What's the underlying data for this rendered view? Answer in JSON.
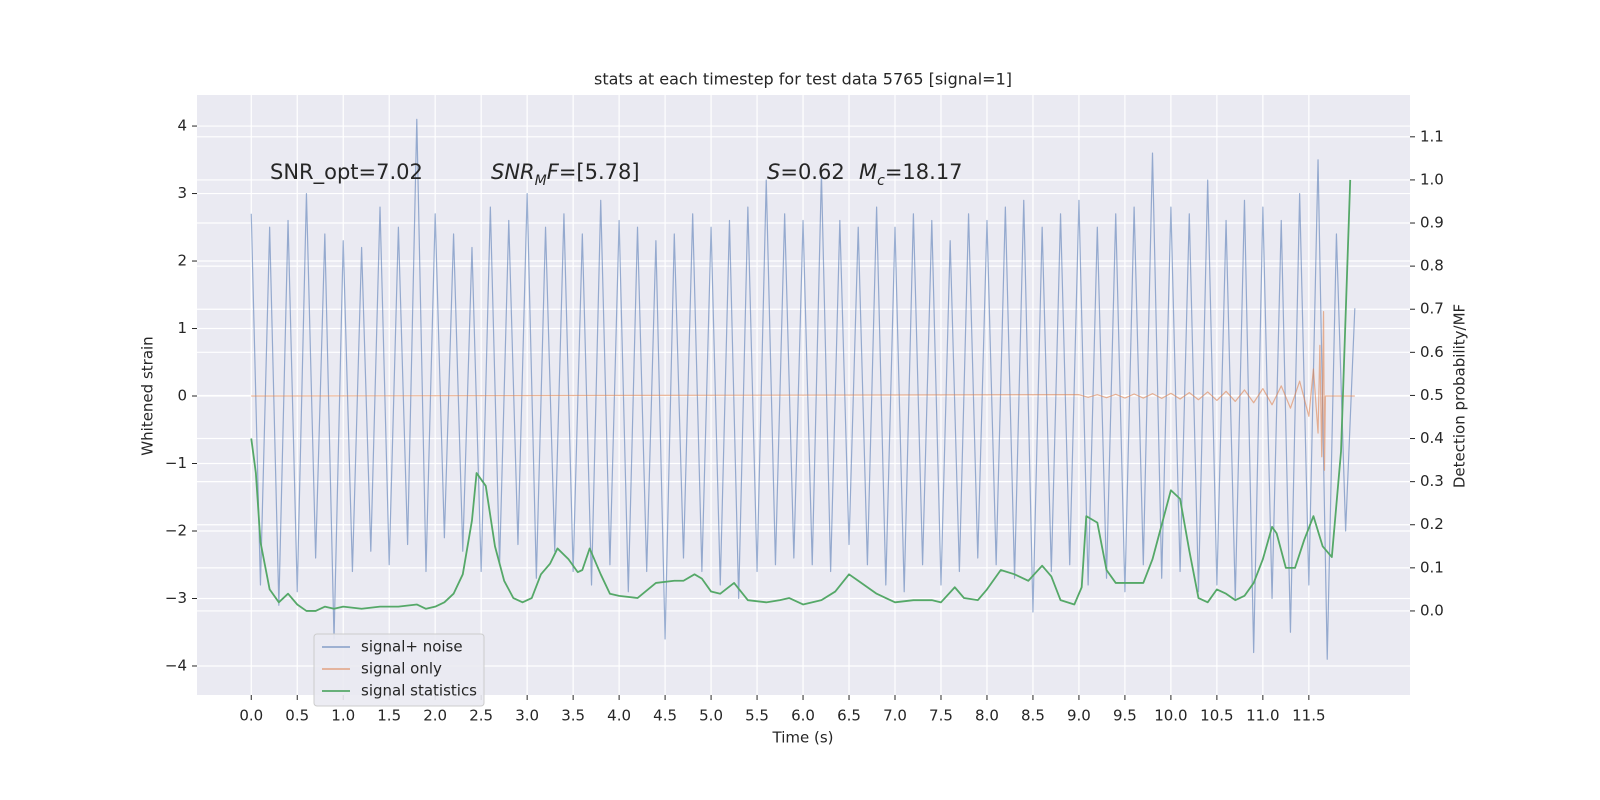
{
  "chart_data": {
    "type": "line",
    "title": "stats at each timestep for test data 5765 [signal=1]",
    "xlabel": "Time (s)",
    "ylabel": "Whitened strain",
    "y2label": "Detection probability/MF",
    "xlim": [
      -0.59,
      12.6
    ],
    "ylim": [
      -4.43,
      4.46
    ],
    "y2lim": [
      -0.195,
      1.197
    ],
    "xticks": [
      {
        "value": 0,
        "label": "0.0"
      },
      0.5,
      {
        "value": 1,
        "label": "1.0"
      },
      1.5,
      {
        "value": 2,
        "label": "2.0"
      },
      2.5,
      {
        "value": 3,
        "label": "3.0"
      },
      3.5,
      {
        "value": 4,
        "label": "4.0"
      },
      4.5,
      {
        "value": 5,
        "label": "5.0"
      },
      5.5,
      {
        "value": 6,
        "label": "6.0"
      },
      6.5,
      {
        "value": 7,
        "label": "7.0"
      },
      7.5,
      {
        "value": 8,
        "label": "8.0"
      },
      8.5,
      {
        "value": 9,
        "label": "9.0"
      },
      9.5,
      {
        "value": 10,
        "label": "10.0"
      },
      10.5,
      {
        "value": 11,
        "label": "11.0"
      },
      11.5
    ],
    "yticks": [
      {
        "value": -4,
        "label": "−4"
      },
      {
        "value": -3,
        "label": "−3"
      },
      {
        "value": -2,
        "label": "−2"
      },
      {
        "value": -1,
        "label": "−1"
      },
      0,
      1,
      2,
      3,
      4
    ],
    "y2ticks": [
      {
        "value": 0,
        "label": "0.0"
      },
      0.1,
      0.2,
      0.3,
      0.4,
      0.5,
      0.6,
      0.7,
      0.8,
      0.9,
      {
        "value": 1,
        "label": "1.0"
      },
      1.1
    ],
    "grid": true,
    "legend": "lower left",
    "annotations": [
      {
        "parts": [
          {
            "text": "SNR_opt=7.02"
          }
        ]
      },
      {
        "parts": [
          {
            "text": "SNR",
            "italic": true
          },
          {
            "text": "M",
            "italic": true,
            "sub": true
          },
          {
            "text": "F",
            "italic": true
          },
          {
            "text": "=[5.78]"
          }
        ]
      },
      {
        "parts": [
          {
            "text": "S",
            "italic": true
          },
          {
            "text": "=0.62"
          }
        ]
      },
      {
        "parts": [
          {
            "text": "M",
            "italic": true
          },
          {
            "text": "c",
            "italic": true,
            "sub": true
          },
          {
            "text": "=18.17"
          }
        ]
      }
    ],
    "series": [
      {
        "name": "signal+ noise",
        "color": "#4c72b0",
        "alpha": 0.55,
        "x": [
          0.0,
          0.1,
          0.2,
          0.3,
          0.4,
          0.5,
          0.6,
          0.7,
          0.8,
          0.9,
          1.0,
          1.1,
          1.2,
          1.3,
          1.4,
          1.5,
          1.6,
          1.7,
          1.8,
          1.9,
          2.0,
          2.1,
          2.2,
          2.3,
          2.4,
          2.5,
          2.6,
          2.7,
          2.8,
          2.9,
          3.0,
          3.1,
          3.2,
          3.3,
          3.4,
          3.5,
          3.6,
          3.7,
          3.8,
          3.9,
          4.0,
          4.1,
          4.2,
          4.3,
          4.4,
          4.5,
          4.6,
          4.7,
          4.8,
          4.9,
          5.0,
          5.1,
          5.2,
          5.3,
          5.4,
          5.5,
          5.6,
          5.7,
          5.8,
          5.9,
          6.0,
          6.1,
          6.2,
          6.3,
          6.4,
          6.5,
          6.6,
          6.7,
          6.8,
          6.9,
          7.0,
          7.1,
          7.2,
          7.3,
          7.4,
          7.5,
          7.6,
          7.7,
          7.8,
          7.9,
          8.0,
          8.1,
          8.2,
          8.3,
          8.4,
          8.5,
          8.6,
          8.7,
          8.8,
          8.9,
          9.0,
          9.1,
          9.2,
          9.3,
          9.4,
          9.5,
          9.6,
          9.7,
          9.8,
          9.9,
          10.0,
          10.1,
          10.2,
          10.3,
          10.4,
          10.5,
          10.6,
          10.7,
          10.8,
          10.9,
          11.0,
          11.1,
          11.2,
          11.3,
          11.4,
          11.5,
          11.6,
          11.7,
          11.8,
          11.9,
          12.0
        ],
        "values": [
          2.7,
          -2.8,
          2.5,
          -3.1,
          2.6,
          -2.9,
          3.0,
          -2.4,
          2.4,
          -3.6,
          2.3,
          -2.6,
          2.2,
          -2.3,
          2.8,
          -2.5,
          2.5,
          -2.2,
          4.1,
          -2.6,
          2.7,
          -2.1,
          2.4,
          -2.3,
          2.2,
          -2.6,
          2.8,
          -2.5,
          2.6,
          -2.2,
          3.0,
          -2.7,
          2.5,
          -2.3,
          2.7,
          -2.6,
          2.4,
          -2.8,
          2.9,
          -2.5,
          2.6,
          -2.9,
          2.5,
          -2.6,
          2.3,
          -3.6,
          2.4,
          -2.4,
          2.7,
          -2.6,
          2.5,
          -2.8,
          2.6,
          -3.0,
          2.8,
          -2.6,
          3.2,
          -2.5,
          2.7,
          -2.4,
          2.6,
          -2.5,
          3.3,
          -2.6,
          2.6,
          -2.2,
          2.5,
          -2.5,
          2.8,
          -2.8,
          2.5,
          -2.9,
          2.7,
          -2.5,
          2.6,
          -2.8,
          2.3,
          -2.6,
          2.7,
          -2.4,
          2.6,
          -2.5,
          2.8,
          -2.7,
          2.9,
          -3.2,
          2.5,
          -2.6,
          2.7,
          -2.5,
          2.9,
          -2.8,
          2.5,
          -2.7,
          2.7,
          -2.9,
          2.8,
          -2.5,
          3.6,
          -2.7,
          2.8,
          -2.6,
          2.7,
          -2.9,
          3.2,
          -2.8,
          2.6,
          -3.0,
          2.9,
          -3.8,
          2.8,
          -3.0,
          2.6,
          -3.5,
          3.0,
          -2.8,
          3.5,
          -3.9,
          2.4,
          -2.0,
          1.3
        ]
      },
      {
        "name": "signal only",
        "color": "#dd8452",
        "alpha": 0.6,
        "x": [
          0.0,
          9.0,
          9.1,
          9.2,
          9.3,
          9.4,
          9.5,
          9.6,
          9.7,
          9.8,
          9.9,
          10.0,
          10.1,
          10.2,
          10.3,
          10.4,
          10.5,
          10.6,
          10.7,
          10.8,
          10.9,
          11.0,
          11.1,
          11.2,
          11.3,
          11.4,
          11.5,
          11.55,
          11.6,
          11.62,
          11.64,
          11.66,
          11.67,
          11.68,
          12.0
        ],
        "values": [
          0,
          0.02,
          -0.02,
          0.02,
          -0.025,
          0.025,
          -0.03,
          0.03,
          -0.03,
          0.035,
          -0.035,
          0.04,
          -0.045,
          0.05,
          -0.055,
          0.06,
          -0.065,
          0.07,
          -0.08,
          0.09,
          -0.1,
          0.11,
          -0.13,
          0.15,
          -0.18,
          0.22,
          -0.3,
          0.4,
          -0.55,
          0.75,
          -0.9,
          1.25,
          -1.1,
          0,
          0
        ]
      },
      {
        "name": "signal statistics",
        "color": "#55a868",
        "alpha": 1,
        "axis": "y2",
        "x": [
          0.0,
          0.05,
          0.1,
          0.2,
          0.3,
          0.4,
          0.5,
          0.6,
          0.7,
          0.8,
          0.9,
          1.0,
          1.2,
          1.4,
          1.6,
          1.8,
          1.9,
          2.0,
          2.1,
          2.2,
          2.3,
          2.4,
          2.45,
          2.55,
          2.65,
          2.75,
          2.85,
          2.95,
          3.05,
          3.15,
          3.25,
          3.33,
          3.45,
          3.55,
          3.6,
          3.68,
          3.8,
          3.9,
          4.0,
          4.2,
          4.4,
          4.6,
          4.7,
          4.82,
          4.9,
          5.0,
          5.1,
          5.25,
          5.4,
          5.6,
          5.75,
          5.85,
          6.0,
          6.2,
          6.35,
          6.5,
          6.6,
          6.8,
          7.0,
          7.2,
          7.4,
          7.5,
          7.65,
          7.75,
          7.9,
          8.0,
          8.15,
          8.3,
          8.45,
          8.6,
          8.7,
          8.8,
          8.95,
          9.03,
          9.08,
          9.2,
          9.3,
          9.4,
          9.6,
          9.7,
          9.8,
          9.9,
          10.0,
          10.1,
          10.2,
          10.3,
          10.4,
          10.5,
          10.6,
          10.7,
          10.8,
          10.9,
          11.0,
          11.1,
          11.15,
          11.25,
          11.35,
          11.45,
          11.55,
          11.65,
          11.75,
          11.85,
          11.95
        ],
        "values": [
          0.4,
          0.32,
          0.16,
          0.05,
          0.02,
          0.04,
          0.015,
          0.0,
          0.0,
          0.01,
          0.005,
          0.01,
          0.005,
          0.01,
          0.01,
          0.015,
          0.005,
          0.01,
          0.02,
          0.04,
          0.085,
          0.21,
          0.32,
          0.29,
          0.15,
          0.07,
          0.03,
          0.02,
          0.03,
          0.085,
          0.11,
          0.145,
          0.12,
          0.09,
          0.095,
          0.145,
          0.085,
          0.04,
          0.035,
          0.03,
          0.065,
          0.07,
          0.07,
          0.085,
          0.075,
          0.045,
          0.04,
          0.065,
          0.025,
          0.02,
          0.025,
          0.03,
          0.015,
          0.025,
          0.045,
          0.085,
          0.07,
          0.04,
          0.02,
          0.025,
          0.025,
          0.02,
          0.055,
          0.03,
          0.025,
          0.05,
          0.095,
          0.085,
          0.07,
          0.105,
          0.08,
          0.025,
          0.015,
          0.055,
          0.22,
          0.205,
          0.095,
          0.065,
          0.065,
          0.065,
          0.12,
          0.2,
          0.28,
          0.26,
          0.14,
          0.03,
          0.02,
          0.05,
          0.04,
          0.025,
          0.035,
          0.065,
          0.12,
          0.195,
          0.18,
          0.1,
          0.1,
          0.165,
          0.22,
          0.15,
          0.125,
          0.37,
          1.0
        ]
      }
    ]
  }
}
